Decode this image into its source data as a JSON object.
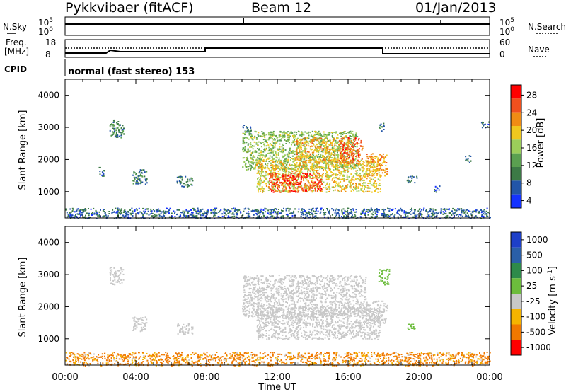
{
  "header": {
    "site": "Pykkvibaer (fitACF)",
    "beam": "Beam 12",
    "date": "01/Jan/2013"
  },
  "strip_labels": {
    "nsky": "N.Sky",
    "nsky_ticks": [
      "10^5",
      "10^0"
    ],
    "freq": "Freq.",
    "freq_unit": "[MHz]",
    "freq_ticks": [
      "18",
      "8"
    ],
    "cpid": "CPID",
    "nsearch": "N.Search",
    "nsearch_ticks": [
      "10^5",
      "10^0"
    ],
    "nave": "Nave",
    "nave_ticks": [
      "60",
      "0"
    ],
    "cpid_text": "normal (fast stereo) 153"
  },
  "colors": {
    "power_scale": [
      "#1432ff",
      "#2255a8",
      "#3c7a46",
      "#5aa050",
      "#9bcd5a",
      "#f0c81e",
      "#f08c14",
      "#f0501e",
      "#ff0000"
    ],
    "velocity_scale": [
      "#1d3fc8",
      "#2a5fa8",
      "#2e8a4a",
      "#6cbc3c",
      "#c8c8c8",
      "#c8c8c8",
      "#f5b400",
      "#f07800",
      "#f03c00",
      "#ff0000"
    ]
  },
  "chart_data": [
    {
      "type": "heatmap",
      "title": "Power",
      "ylabel": "Slant Range [km]",
      "xlabel": "",
      "xlim": [
        "00:00",
        "24:00"
      ],
      "ylim": [
        180,
        4500
      ],
      "x_ticks": [
        "00:00",
        "04:00",
        "08:00",
        "12:00",
        "16:00",
        "20:00",
        "00:00"
      ],
      "y_ticks": [
        1000,
        2000,
        3000,
        4000
      ],
      "colorbar": {
        "label": "Power [dB]",
        "ticks": [
          "28",
          "24",
          "20",
          "16",
          "12",
          "8",
          "4"
        ],
        "range": [
          0,
          30
        ]
      },
      "regions": [
        {
          "t0": 2.5,
          "t1": 3.3,
          "r0": 2700,
          "r1": 3250,
          "value": 9
        },
        {
          "t0": 1.9,
          "t1": 2.2,
          "r0": 1500,
          "r1": 1800,
          "value": 7
        },
        {
          "t0": 3.8,
          "t1": 4.6,
          "r0": 1250,
          "r1": 1700,
          "value": 8
        },
        {
          "t0": 6.3,
          "t1": 7.2,
          "r0": 1150,
          "r1": 1500,
          "value": 8
        },
        {
          "t0": 10.0,
          "t1": 10.5,
          "r0": 2800,
          "r1": 3100,
          "value": 7
        },
        {
          "t0": 10.0,
          "t1": 16.5,
          "r0": 1700,
          "r1": 2900,
          "value": 14
        },
        {
          "t0": 10.8,
          "t1": 17.8,
          "r0": 1000,
          "r1": 2000,
          "value": 18
        },
        {
          "t0": 11.5,
          "t1": 14.5,
          "r0": 1000,
          "r1": 1600,
          "value": 26
        },
        {
          "t0": 13.0,
          "t1": 16.0,
          "r0": 1900,
          "r1": 2700,
          "value": 20
        },
        {
          "t0": 15.5,
          "t1": 16.8,
          "r0": 1900,
          "r1": 2700,
          "value": 24
        },
        {
          "t0": 17.0,
          "t1": 18.2,
          "r0": 1500,
          "r1": 2200,
          "value": 20
        },
        {
          "t0": 17.7,
          "t1": 18.0,
          "r0": 2900,
          "r1": 3150,
          "value": 8
        },
        {
          "t0": 19.3,
          "t1": 19.9,
          "r0": 1300,
          "r1": 1500,
          "value": 7
        },
        {
          "t0": 20.8,
          "t1": 21.2,
          "r0": 1000,
          "r1": 1200,
          "value": 6
        },
        {
          "t0": 22.6,
          "t1": 22.9,
          "r0": 1900,
          "r1": 2150,
          "value": 7
        },
        {
          "t0": 23.5,
          "t1": 24.0,
          "r0": 3000,
          "r1": 3200,
          "value": 6
        },
        {
          "t0": 0.0,
          "t1": 24.0,
          "r0": 180,
          "r1": 500,
          "value": 6
        }
      ]
    },
    {
      "type": "heatmap",
      "title": "Velocity",
      "ylabel": "Slant Range [km]",
      "xlabel": "Time UT",
      "xlim": [
        "00:00",
        "24:00"
      ],
      "ylim": [
        180,
        4500
      ],
      "x_ticks": [
        "00:00",
        "04:00",
        "08:00",
        "12:00",
        "16:00",
        "20:00",
        "00:00"
      ],
      "y_ticks": [
        1000,
        2000,
        3000,
        4000
      ],
      "colorbar": {
        "label": "Velocity [m s^-1]",
        "ticks": [
          "1000",
          "500",
          "100",
          "25",
          "-25",
          "-100",
          "-500",
          "-1000"
        ],
        "range": [
          -1000,
          1000
        ]
      },
      "regions": [
        {
          "t0": 2.5,
          "t1": 3.3,
          "r0": 2700,
          "r1": 3250,
          "value": 0
        },
        {
          "t0": 3.8,
          "t1": 4.6,
          "r0": 1250,
          "r1": 1700,
          "value": 0
        },
        {
          "t0": 6.3,
          "t1": 7.2,
          "r0": 1150,
          "r1": 1500,
          "value": 0
        },
        {
          "t0": 10.0,
          "t1": 17.0,
          "r0": 1700,
          "r1": 3000,
          "value": 0
        },
        {
          "t0": 10.8,
          "t1": 17.8,
          "r0": 1000,
          "r1": 2000,
          "value": 0
        },
        {
          "t0": 17.0,
          "t1": 18.2,
          "r0": 1500,
          "r1": 2200,
          "value": 0
        },
        {
          "t0": 17.7,
          "t1": 18.3,
          "r0": 2700,
          "r1": 3200,
          "value": 60
        },
        {
          "t0": 19.3,
          "t1": 19.8,
          "r0": 1300,
          "r1": 1500,
          "value": 80
        },
        {
          "t0": 0.0,
          "t1": 24.0,
          "r0": 180,
          "r1": 600,
          "value": -150
        }
      ]
    }
  ]
}
